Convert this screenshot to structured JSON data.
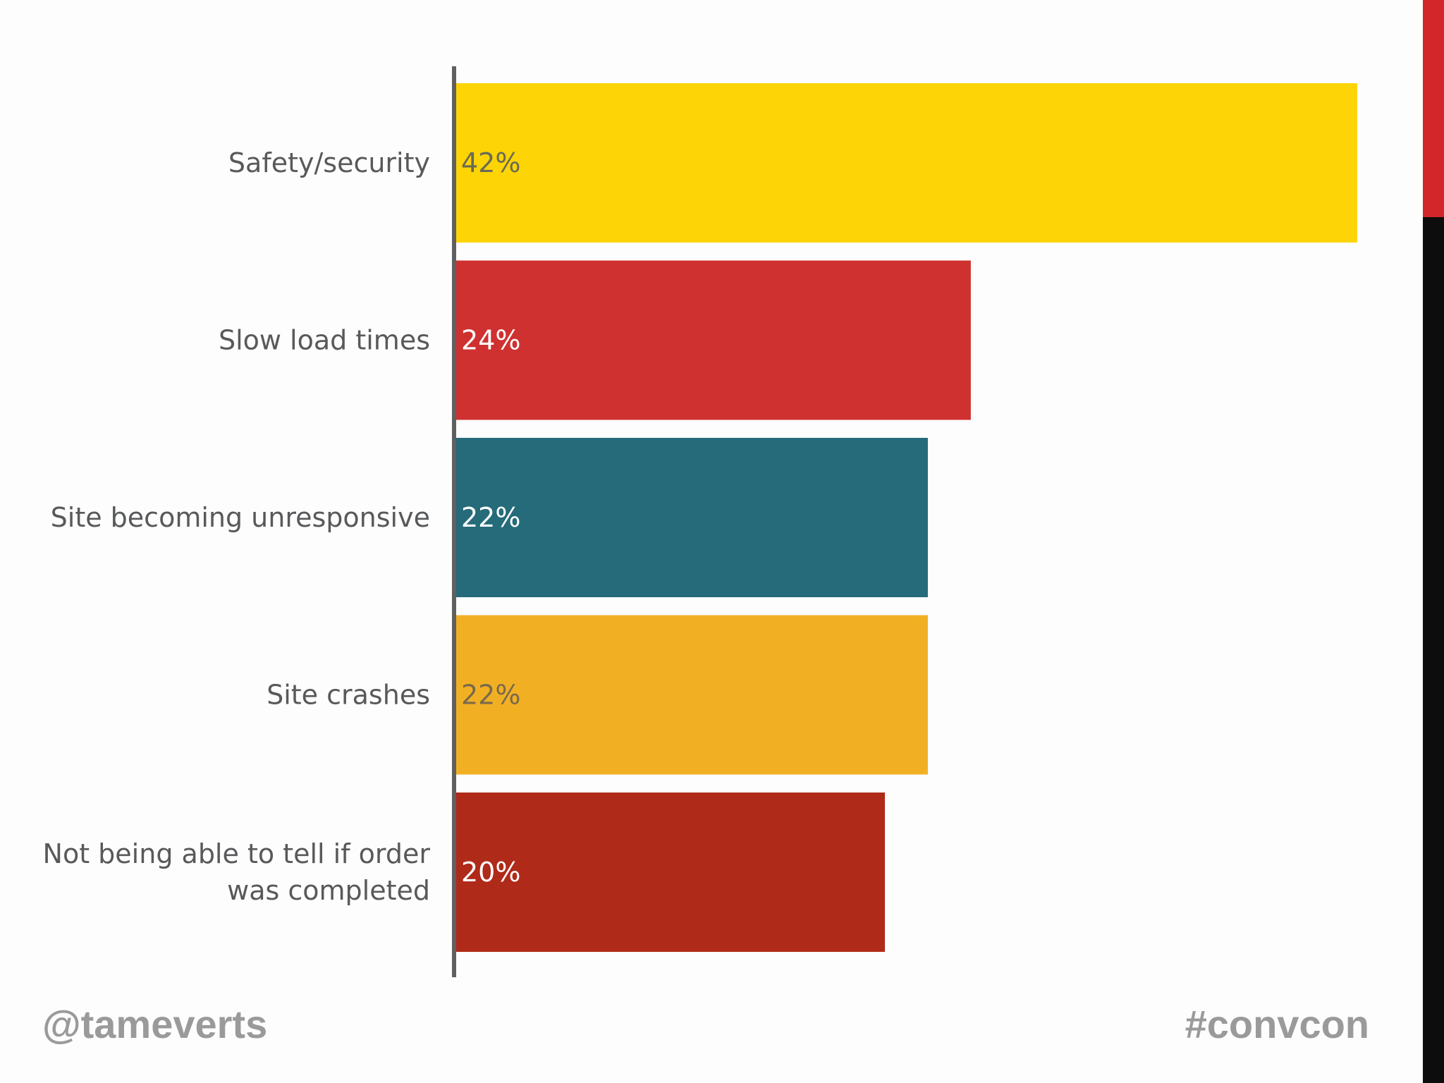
{
  "slide": {
    "footer_left": "@tameverts",
    "footer_right": "#convcon",
    "accent_colors": [
      "#d3262b",
      "#0d0d0d"
    ]
  },
  "chart_data": {
    "type": "bar",
    "orientation": "horizontal",
    "categories": [
      "Safety/security",
      "Slow load times",
      "Site becoming unresponsive",
      "Site crashes",
      "Not being able to tell if order was completed"
    ],
    "values": [
      42,
      24,
      22,
      22,
      20
    ],
    "value_labels": [
      "42%",
      "24%",
      "22%",
      "22%",
      "20%"
    ],
    "unit": "%",
    "colors": [
      "#fdd405",
      "#cf3130",
      "#256b7a",
      "#f1b024",
      "#b02a19"
    ],
    "label_colors": [
      "#6a6a55",
      "#ffffff",
      "#ffffff",
      "#7a6a4a",
      "#ffffff"
    ],
    "xlim": [
      0,
      42
    ],
    "grid": false,
    "legend": "none"
  }
}
